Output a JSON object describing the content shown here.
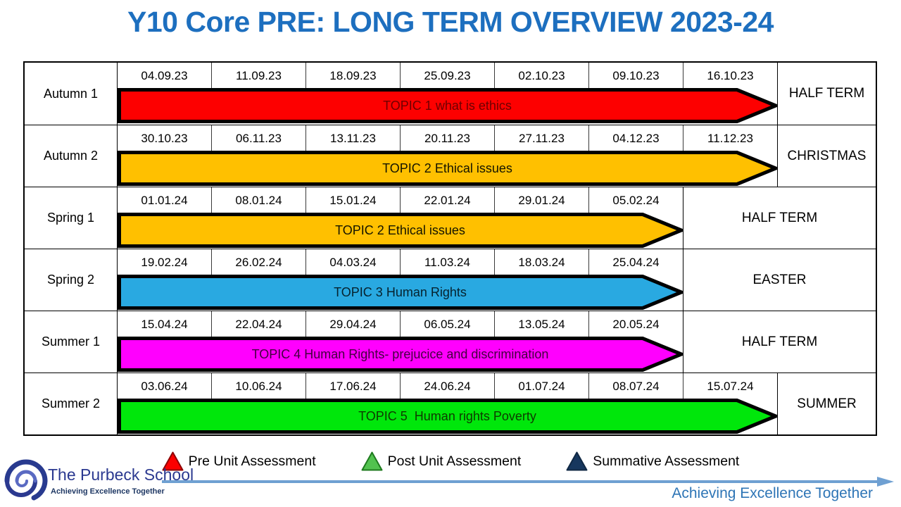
{
  "title": {
    "text": "Y10 Core PRE: LONG TERM OVERVIEW 2023-24",
    "color": "#1d6fbf"
  },
  "table": {
    "rows": [
      {
        "term": "Autumn 1",
        "dates": [
          "04.09.23",
          "11.09.23",
          "18.09.23",
          "25.09.23",
          "02.10.23",
          "09.10.23",
          "16.10.23"
        ],
        "topic": "TOPIC 1 what is ethics",
        "arrow_fill": "#fd0000",
        "topic_color": "#6e0000",
        "break_label": "HALF TERM"
      },
      {
        "term": "Autumn 2",
        "dates": [
          "30.10.23",
          "06.11.23",
          "13.11.23",
          "20.11.23",
          "27.11.23",
          "04.12.23",
          "11.12.23"
        ],
        "topic": "TOPIC 2 Ethical issues",
        "arrow_fill": "#ffc000",
        "topic_color": "#141400",
        "break_label": "CHRISTMAS"
      },
      {
        "term": "Spring 1",
        "dates": [
          "01.01.24",
          "08.01.24",
          "15.01.24",
          "22.01.24",
          "29.01.24",
          "05.02.24"
        ],
        "topic": "TOPIC 2 Ethical issues",
        "arrow_fill": "#ffc000",
        "topic_color": "#141400",
        "break_label": "HALF TERM"
      },
      {
        "term": "Spring 2",
        "dates": [
          "19.02.24",
          "26.02.24",
          "04.03.24",
          "11.03.24",
          "18.03.24",
          "25.04.24"
        ],
        "topic": "TOPIC 3 Human Rights",
        "arrow_fill": "#29a9e1",
        "topic_color": "#06222e",
        "break_label": "EASTER"
      },
      {
        "term": "Summer 1",
        "dates": [
          "15.04.24",
          "22.04.24",
          "29.04.24",
          "06.05.24",
          "13.05.24",
          "20.05.24"
        ],
        "topic": "TOPIC 4 Human Rights- prejucice and discrimination",
        "arrow_fill": "#ff00fe",
        "topic_color": "#43003f",
        "break_label": "HALF TERM"
      },
      {
        "term": "Summer 2",
        "dates": [
          "03.06.24",
          "10.06.24",
          "17.06.24",
          "24.06.24",
          "01.07.24",
          "08.07.24",
          "15.07.24"
        ],
        "topic": "TOPIC 5  Human rights Poverty",
        "arrow_fill": "#00e70b",
        "topic_color": "#0e3a00",
        "break_label": "SUMMER"
      }
    ]
  },
  "legend": {
    "items": [
      {
        "label": "Pre Unit Assessment",
        "icon": "red-triangle-icon",
        "fill": "#fb0000",
        "stroke": "#8f0000"
      },
      {
        "label": "Post Unit Assessment",
        "icon": "green-triangle-icon",
        "fill": "#52c24f",
        "stroke": "#1e7a1e"
      },
      {
        "label": "Summative Assessment",
        "icon": "navy-triangle-icon",
        "fill": "#17375e",
        "stroke": "#102844"
      }
    ]
  },
  "footer": {
    "school_name": "The Purbeck School",
    "school_name_color": "#2b3990",
    "motto_small": "Achieving Excellence Together",
    "motto_small_color": "#1f3864",
    "motto_large": "Achieving Excellence Together",
    "motto_large_color": "#2e75b6",
    "line_color": "#6fa0d2"
  },
  "layout_colors": {
    "grid_border": "#000000",
    "background": "#ffffff"
  }
}
